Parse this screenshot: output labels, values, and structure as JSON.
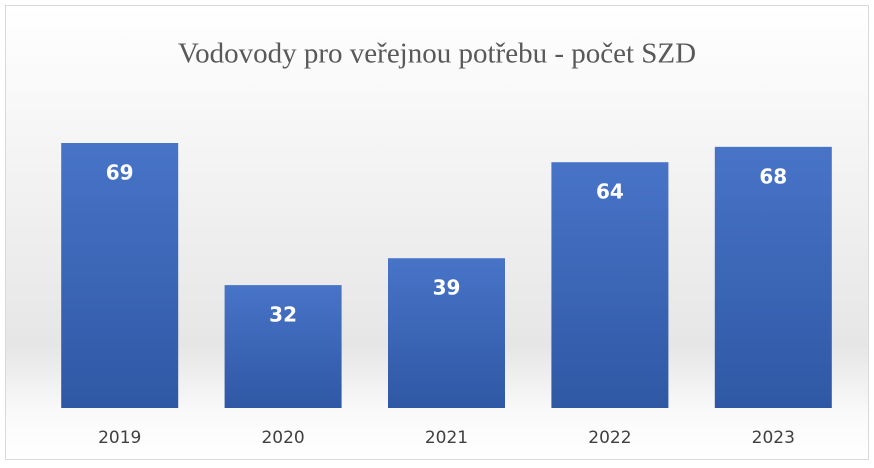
{
  "chart_data": {
    "type": "bar",
    "title": "Vodovody pro veřejnou potřebu - počet SZD",
    "categories": [
      "2019",
      "2020",
      "2021",
      "2022",
      "2023"
    ],
    "values": [
      69,
      32,
      39,
      64,
      68
    ],
    "color": "#4472c4"
  }
}
